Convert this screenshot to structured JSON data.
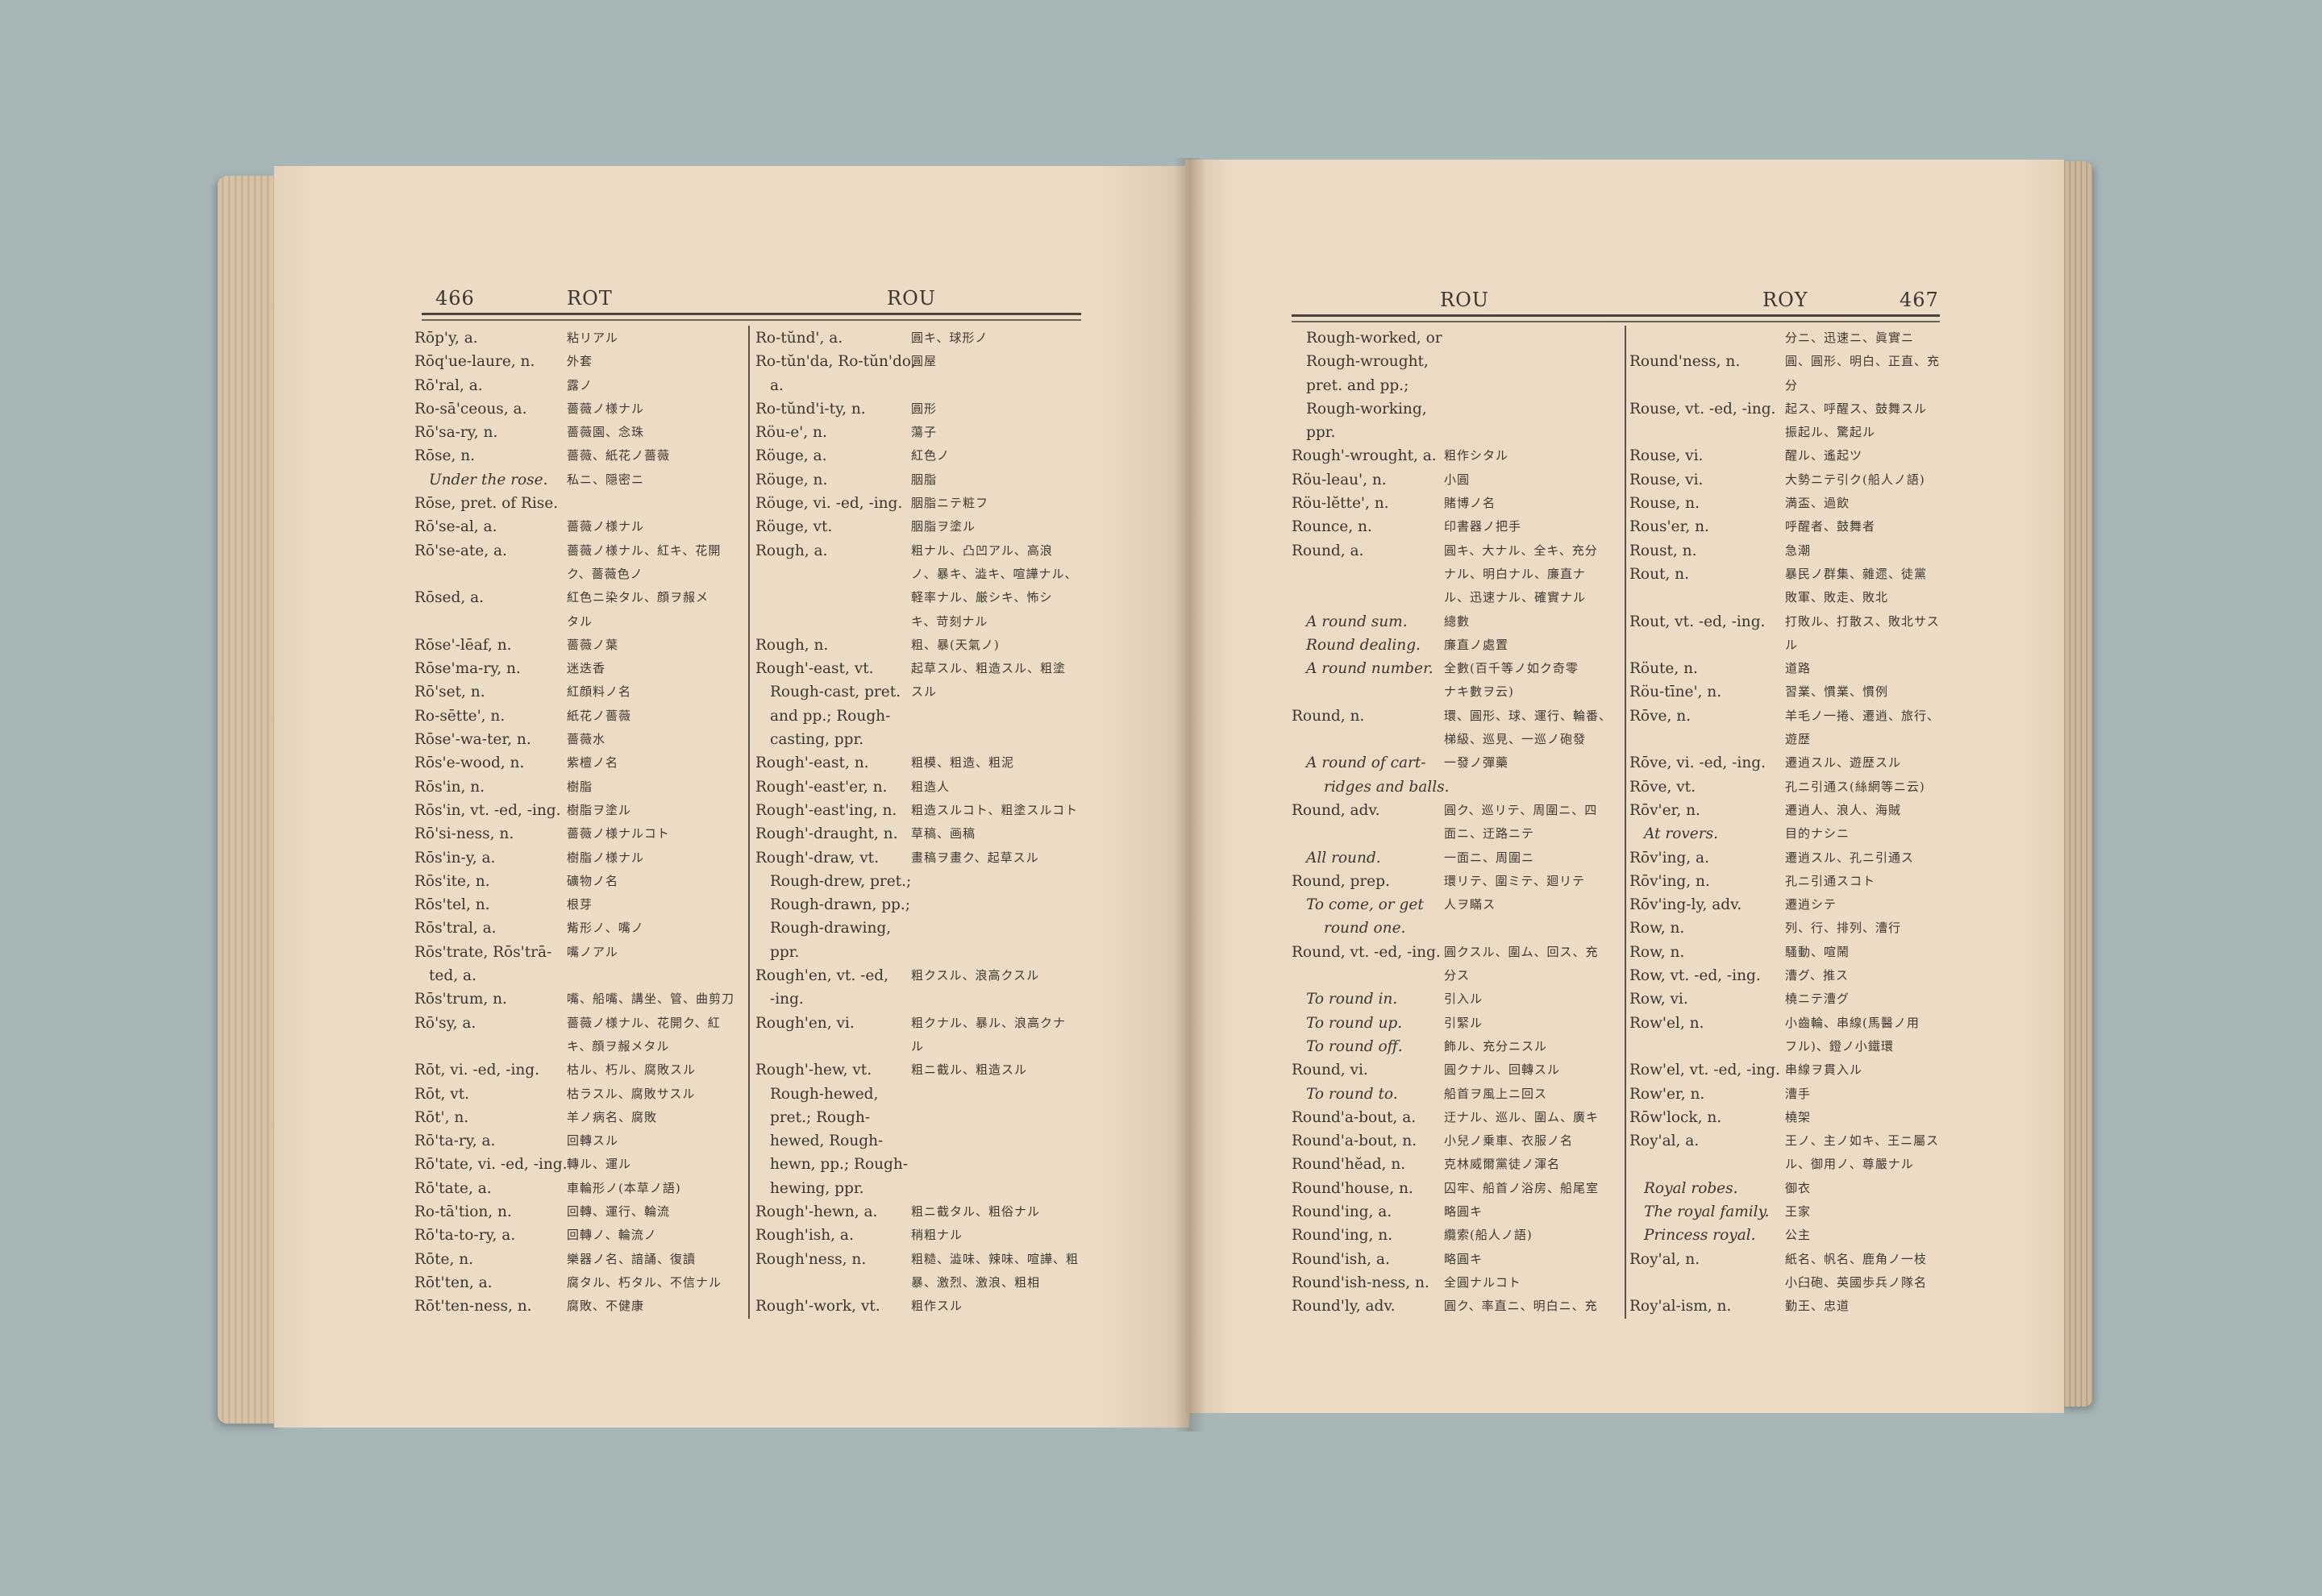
{
  "left_page": {
    "page_number": "466",
    "guide_left": "ROT",
    "guide_right": "ROU",
    "col1": [
      [
        "Rōp'y, a.",
        "粘リアル",
        ""
      ],
      [
        "Rōq'ue-laure, n.",
        "外套",
        ""
      ],
      [
        "Rō'ral, a.",
        "露ノ",
        ""
      ],
      [
        "Ro-sā'ceous, a.",
        "薔薇ノ様ナル",
        ""
      ],
      [
        "Rō'sa-ry, n.",
        "薔薇園、念珠",
        ""
      ],
      [
        "Rōse, n.",
        "薔薇、紙花ノ薔薇",
        ""
      ],
      [
        "Under the rose.",
        "私ニ、隠密ニ",
        "i"
      ],
      [
        "Rōse, pret. of Rise.",
        "",
        ""
      ],
      [
        "Rō'se-al, a.",
        "薔薇ノ様ナル",
        ""
      ],
      [
        "Rō'se-ate, a.",
        "薔薇ノ様ナル、紅キ、花開",
        ""
      ],
      [
        "",
        "ク、薔薇色ノ",
        ""
      ],
      [
        "Rōsed, a.",
        "紅色ニ染タル、顔ヲ赧メ",
        ""
      ],
      [
        "",
        "タル",
        ""
      ],
      [
        "Rōse'-lēaf, n.",
        "薔薇ノ葉",
        ""
      ],
      [
        "Rōse'ma-ry, n.",
        "迷迭香",
        ""
      ],
      [
        "Rō'set, n.",
        "紅顔料ノ名",
        ""
      ],
      [
        "Ro-sētte', n.",
        "紙花ノ薔薇",
        ""
      ],
      [
        "Rōse'-wa-ter, n.",
        "薔薇水",
        ""
      ],
      [
        "Rōs'e-wood, n.",
        "紫檀ノ名",
        ""
      ],
      [
        "Rōs'in, n.",
        "樹脂",
        ""
      ],
      [
        "Rōs'in, vt. -ed, -ing.",
        "樹脂ヲ塗ル",
        ""
      ],
      [
        "Rō'si-ness, n.",
        "薔薇ノ様ナルコト",
        ""
      ],
      [
        "Rōs'in-y, a.",
        "樹脂ノ様ナル",
        ""
      ],
      [
        "Rōs'ite, n.",
        "礦物ノ名",
        ""
      ],
      [
        "Rōs'tel, n.",
        "根芽",
        ""
      ],
      [
        "Rōs'tral, a.",
        "觜形ノ、嘴ノ",
        ""
      ],
      [
        "Rōs'trate, Rōs'trā-",
        "嘴ノアル",
        ""
      ],
      [
        "ted, a.",
        "",
        "c"
      ],
      [
        "Rōs'trum, n.",
        "嘴、船嘴、講坐、管、曲剪刀",
        ""
      ],
      [
        "Rō'sy, a.",
        "薔薇ノ様ナル、花開ク、紅",
        ""
      ],
      [
        "",
        "キ、顔ヲ赧メタル",
        ""
      ],
      [
        "Rōt, vi. -ed, -ing.",
        "枯ル、朽ル、腐敗スル",
        ""
      ],
      [
        "Rōt, vt.",
        "枯ラスル、腐敗サスル",
        ""
      ],
      [
        "Rōt', n.",
        "羊ノ病名、腐敗",
        ""
      ],
      [
        "Rō'ta-ry, a.",
        "回轉スル",
        ""
      ],
      [
        "Rō'tate, vi. -ed, -ing.",
        "轉ル、運ル",
        ""
      ],
      [
        "Rō'tate, a.",
        "車輪形ノ(本草ノ語)",
        ""
      ],
      [
        "Ro-tā'tion, n.",
        "回轉、運行、輪流",
        ""
      ],
      [
        "Rō'ta-to-ry, a.",
        "回轉ノ、輪流ノ",
        ""
      ],
      [
        "Rōte, n.",
        "樂器ノ名、諳誦、復讀",
        ""
      ],
      [
        "Rōt'ten, a.",
        "腐タル、朽タル、不信ナル",
        ""
      ],
      [
        "Rōt'ten-ness, n.",
        "腐敗、不健康",
        ""
      ]
    ],
    "col2": [
      [
        "Ro-tŭnd', a.",
        "圓キ、球形ノ",
        ""
      ],
      [
        "Ro-tŭn'da, Ro-tŭn'do,",
        "圓屋",
        ""
      ],
      [
        "a.",
        "",
        "c"
      ],
      [
        "Ro-tŭnd'i-ty, n.",
        "圓形",
        ""
      ],
      [
        "Röu-e', n.",
        "蕩子",
        ""
      ],
      [
        "Röuge, a.",
        "紅色ノ",
        ""
      ],
      [
        "Röuge, n.",
        "胭脂",
        ""
      ],
      [
        "Röuge, vi. -ed, -ing.",
        "胭脂ニテ粧フ",
        ""
      ],
      [
        "Röuge, vt.",
        "胭脂ヲ塗ル",
        ""
      ],
      [
        "Rough, a.",
        "粗ナル、凸凹アル、高浪",
        ""
      ],
      [
        "",
        "ノ、暴キ、澁キ、喧譁ナル、",
        ""
      ],
      [
        "",
        "軽率ナル、厳シキ、怖シ",
        ""
      ],
      [
        "",
        "キ、苛刻ナル",
        ""
      ],
      [
        "Rough, n.",
        "粗、暴(天氣ノ)",
        ""
      ],
      [
        "Rough'-east, vt.",
        "起草スル、粗造スル、粗塗",
        ""
      ],
      [
        "Rough-cast, pret.",
        "スル",
        "c"
      ],
      [
        "and pp.; Rough-",
        "",
        "c"
      ],
      [
        "casting, ppr.",
        "",
        "c"
      ],
      [
        "Rough'-east, n.",
        "粗模、粗造、粗泥",
        ""
      ],
      [
        "Rough'-east'er, n.",
        "粗造人",
        ""
      ],
      [
        "Rough'-east'ing, n.",
        "粗造スルコト、粗塗スルコト",
        ""
      ],
      [
        "Rough'-draught, n.",
        "草稿、画稿",
        ""
      ],
      [
        "Rough'-draw, vt.",
        "畫稿ヲ畫ク、起草スル",
        ""
      ],
      [
        "Rough-drew, pret.;",
        "",
        "c"
      ],
      [
        "Rough-drawn, pp.;",
        "",
        "c"
      ],
      [
        "Rough-drawing,",
        "",
        "c"
      ],
      [
        "ppr.",
        "",
        "c"
      ],
      [
        "Rough'en, vt. -ed,",
        "粗クスル、浪高クスル",
        ""
      ],
      [
        "-ing.",
        "",
        "c"
      ],
      [
        "Rough'en, vi.",
        "粗クナル、暴ル、浪高クナ",
        ""
      ],
      [
        "",
        "ル",
        ""
      ],
      [
        "Rough'-hew, vt.",
        "粗ニ截ル、粗造スル",
        ""
      ],
      [
        "Rough-hewed,",
        "",
        "c"
      ],
      [
        "pret.; Rough-",
        "",
        "c"
      ],
      [
        "hewed, Rough-",
        "",
        "c"
      ],
      [
        "hewn, pp.; Rough-",
        "",
        "c"
      ],
      [
        "hewing, ppr.",
        "",
        "c"
      ],
      [
        "Rough'-hewn, a.",
        "粗ニ截タル、粗俗ナル",
        ""
      ],
      [
        "Rough'ish, a.",
        "稍粗ナル",
        ""
      ],
      [
        "Rough'ness, n.",
        "粗糙、澁味、辣味、喧譁、粗",
        ""
      ],
      [
        "",
        "暴、激烈、激浪、粗相",
        ""
      ],
      [
        "Rough'-work, vt.",
        "粗作スル",
        ""
      ]
    ]
  },
  "right_page": {
    "page_number": "467",
    "guide_left": "ROU",
    "guide_right": "ROY",
    "col1": [
      [
        "Rough-worked, or",
        "",
        "c"
      ],
      [
        "Rough-wrought,",
        "",
        "c"
      ],
      [
        "pret. and pp.;",
        "",
        "c"
      ],
      [
        "Rough-working,",
        "",
        "c"
      ],
      [
        "ppr.",
        "",
        "c"
      ],
      [
        "Rough'-wrought, a.",
        "粗作シタル",
        ""
      ],
      [
        "Röu-leau', n.",
        "小圓",
        ""
      ],
      [
        "Röu-lĕtte', n.",
        "賭博ノ名",
        ""
      ],
      [
        "Rounce, n.",
        "印書器ノ把手",
        ""
      ],
      [
        "Round, a.",
        "圓キ、大ナル、全キ、充分",
        ""
      ],
      [
        "",
        "ナル、明白ナル、廉直ナ",
        ""
      ],
      [
        "",
        "ル、迅速ナル、確實ナル",
        ""
      ],
      [
        "A round sum.",
        "總數",
        "i"
      ],
      [
        "Round dealing.",
        "廉直ノ處置",
        "i"
      ],
      [
        "A round number.",
        "全數(百千等ノ如ク奇零",
        "i"
      ],
      [
        "",
        "ナキ數ヲ云)",
        ""
      ],
      [
        "Round, n.",
        "環、圓形、球、運行、輪番、",
        ""
      ],
      [
        "",
        "梯級、巡見、一巡ノ砲發",
        ""
      ],
      [
        "A round of cart-",
        "一發ノ彈藥",
        "i"
      ],
      [
        "ridges and balls.",
        "",
        "i2"
      ],
      [
        "Round, adv.",
        "圓ク、巡リテ、周圍ニ、四",
        ""
      ],
      [
        "",
        "面ニ、迂路ニテ",
        ""
      ],
      [
        "All round.",
        "一面ニ、周圍ニ",
        "i"
      ],
      [
        "Round, prep.",
        "環リテ、圍ミテ、廻リテ",
        ""
      ],
      [
        "To come, or get",
        "人ヲ瞞ス",
        "i"
      ],
      [
        "round one.",
        "",
        "i2"
      ],
      [
        "Round, vt. -ed, -ing.",
        "圓クスル、圍ム、回ス、充",
        ""
      ],
      [
        "",
        "分ス",
        ""
      ],
      [
        "To round in.",
        "引入ル",
        "i"
      ],
      [
        "To round up.",
        "引緊ル",
        "i"
      ],
      [
        "To round off.",
        "飾ル、充分ニスル",
        "i"
      ],
      [
        "Round, vi.",
        "圓クナル、回轉スル",
        ""
      ],
      [
        "To round to.",
        "船首ヲ風上ニ回ス",
        "i"
      ],
      [
        "Round'a-bout, a.",
        "迂ナル、巡ル、圍ム、廣キ",
        ""
      ],
      [
        "Round'a-bout, n.",
        "小兒ノ乗車、衣服ノ名",
        ""
      ],
      [
        "Round'hĕad, n.",
        "克林威爾黨徒ノ渾名",
        ""
      ],
      [
        "Round'house, n.",
        "囚牢、船首ノ浴房、船尾室",
        ""
      ],
      [
        "Round'ing, a.",
        "略圓キ",
        ""
      ],
      [
        "Round'ing, n.",
        "纜索(船人ノ語)",
        ""
      ],
      [
        "Round'ish, a.",
        "略圓キ",
        ""
      ],
      [
        "Round'ish-ness, n.",
        "全圓ナルコト",
        ""
      ],
      [
        "Round'ly, adv.",
        "圓ク、率直ニ、明白ニ、充",
        ""
      ]
    ],
    "col2": [
      [
        "",
        "分ニ、迅速ニ、眞實ニ",
        ""
      ],
      [
        "Round'ness, n.",
        "圓、圓形、明白、正直、充",
        ""
      ],
      [
        "",
        "分",
        ""
      ],
      [
        "Rouse, vt. -ed, -ing.",
        "起ス、呼醒ス、鼓舞スル",
        ""
      ],
      [
        "",
        "振起ル、驚起ル",
        ""
      ],
      [
        "Rouse, vi.",
        "醒ル、遙起ツ",
        ""
      ],
      [
        "Rouse, vi.",
        "大勢ニテ引ク(船人ノ語)",
        ""
      ],
      [
        "Rouse, n.",
        "満盃、過飲",
        ""
      ],
      [
        "Rous'er, n.",
        "呼醒者、鼓舞者",
        ""
      ],
      [
        "Roust, n.",
        "急潮",
        ""
      ],
      [
        "Rout, n.",
        "暴民ノ群集、雜遝、徒黨",
        ""
      ],
      [
        "",
        "敗軍、敗走、敗北",
        ""
      ],
      [
        "Rout, vt. -ed, -ing.",
        "打敗ル、打散ス、敗北サス",
        ""
      ],
      [
        "",
        "ル",
        ""
      ],
      [
        "Röute, n.",
        "道路",
        ""
      ],
      [
        "Röu-tīne', n.",
        "習業、慣業、慣例",
        ""
      ],
      [
        "Rōve, n.",
        "羊毛ノ一捲、遷逍、旅行、",
        ""
      ],
      [
        "",
        "遊歴",
        ""
      ],
      [
        "Rōve, vi. -ed, -ing.",
        "遷逍スル、遊歴スル",
        ""
      ],
      [
        "Rōve, vt.",
        "孔ニ引通ス(絲網等ニ云)",
        ""
      ],
      [
        "Rōv'er, n.",
        "遷逍人、浪人、海賊",
        ""
      ],
      [
        "At rovers.",
        "目的ナシニ",
        "i"
      ],
      [
        "Rōv'ing, a.",
        "遷逍スル、孔ニ引通ス",
        ""
      ],
      [
        "Rōv'ing, n.",
        "孔ニ引通スコト",
        ""
      ],
      [
        "Rōv'ing-ly, adv.",
        "遷逍シテ",
        ""
      ],
      [
        "Row, n.",
        "列、行、排列、漕行",
        ""
      ],
      [
        "Row, n.",
        "騷動、喧鬧",
        ""
      ],
      [
        "Row, vt. -ed, -ing.",
        "漕グ、推ス",
        ""
      ],
      [
        "Row, vi.",
        "橈ニテ漕グ",
        ""
      ],
      [
        "Row'el, n.",
        "小齒輪、串線(馬醫ノ用",
        ""
      ],
      [
        "",
        "フル)、鐙ノ小鐵環",
        ""
      ],
      [
        "Row'el, vt. -ed, -ing.",
        "串線ヲ貫入ル",
        ""
      ],
      [
        "Row'er, n.",
        "漕手",
        ""
      ],
      [
        "Rōw'lock, n.",
        "橈架",
        ""
      ],
      [
        "Roy'al, a.",
        "王ノ、主ノ如キ、王ニ屬ス",
        ""
      ],
      [
        "",
        "ル、御用ノ、尊嚴ナル",
        ""
      ],
      [
        "Royal robes.",
        "御衣",
        "i"
      ],
      [
        "The royal family.",
        "王家",
        "i"
      ],
      [
        "Princess royal.",
        "公主",
        "i"
      ],
      [
        "Roy'al, n.",
        "紙名、帆名、鹿角ノ一枝",
        ""
      ],
      [
        "",
        "小臼砲、英國歩兵ノ隊名",
        ""
      ],
      [
        "Roy'al-ism, n.",
        "勤王、忠道",
        ""
      ]
    ]
  }
}
